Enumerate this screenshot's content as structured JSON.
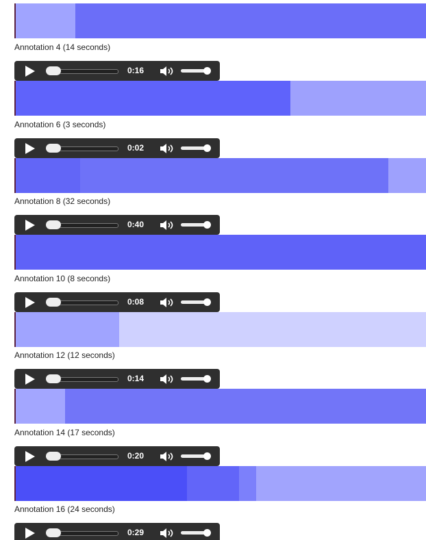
{
  "annotations": [
    {
      "label": "Annotation 4 (14 seconds)",
      "time": "0:16"
    },
    {
      "label": "Annotation 6 (3 seconds)",
      "time": "0:02"
    },
    {
      "label": "Annotation 8 (32 seconds)",
      "time": "0:40"
    },
    {
      "label": "Annotation 10 (8 seconds)",
      "time": "0:08"
    },
    {
      "label": "Annotation 12 (12 seconds)",
      "time": "0:14"
    },
    {
      "label": "Annotation 14 (17 seconds)",
      "time": "0:20"
    },
    {
      "label": "Annotation 16 (24 seconds)",
      "time": "0:29"
    }
  ]
}
